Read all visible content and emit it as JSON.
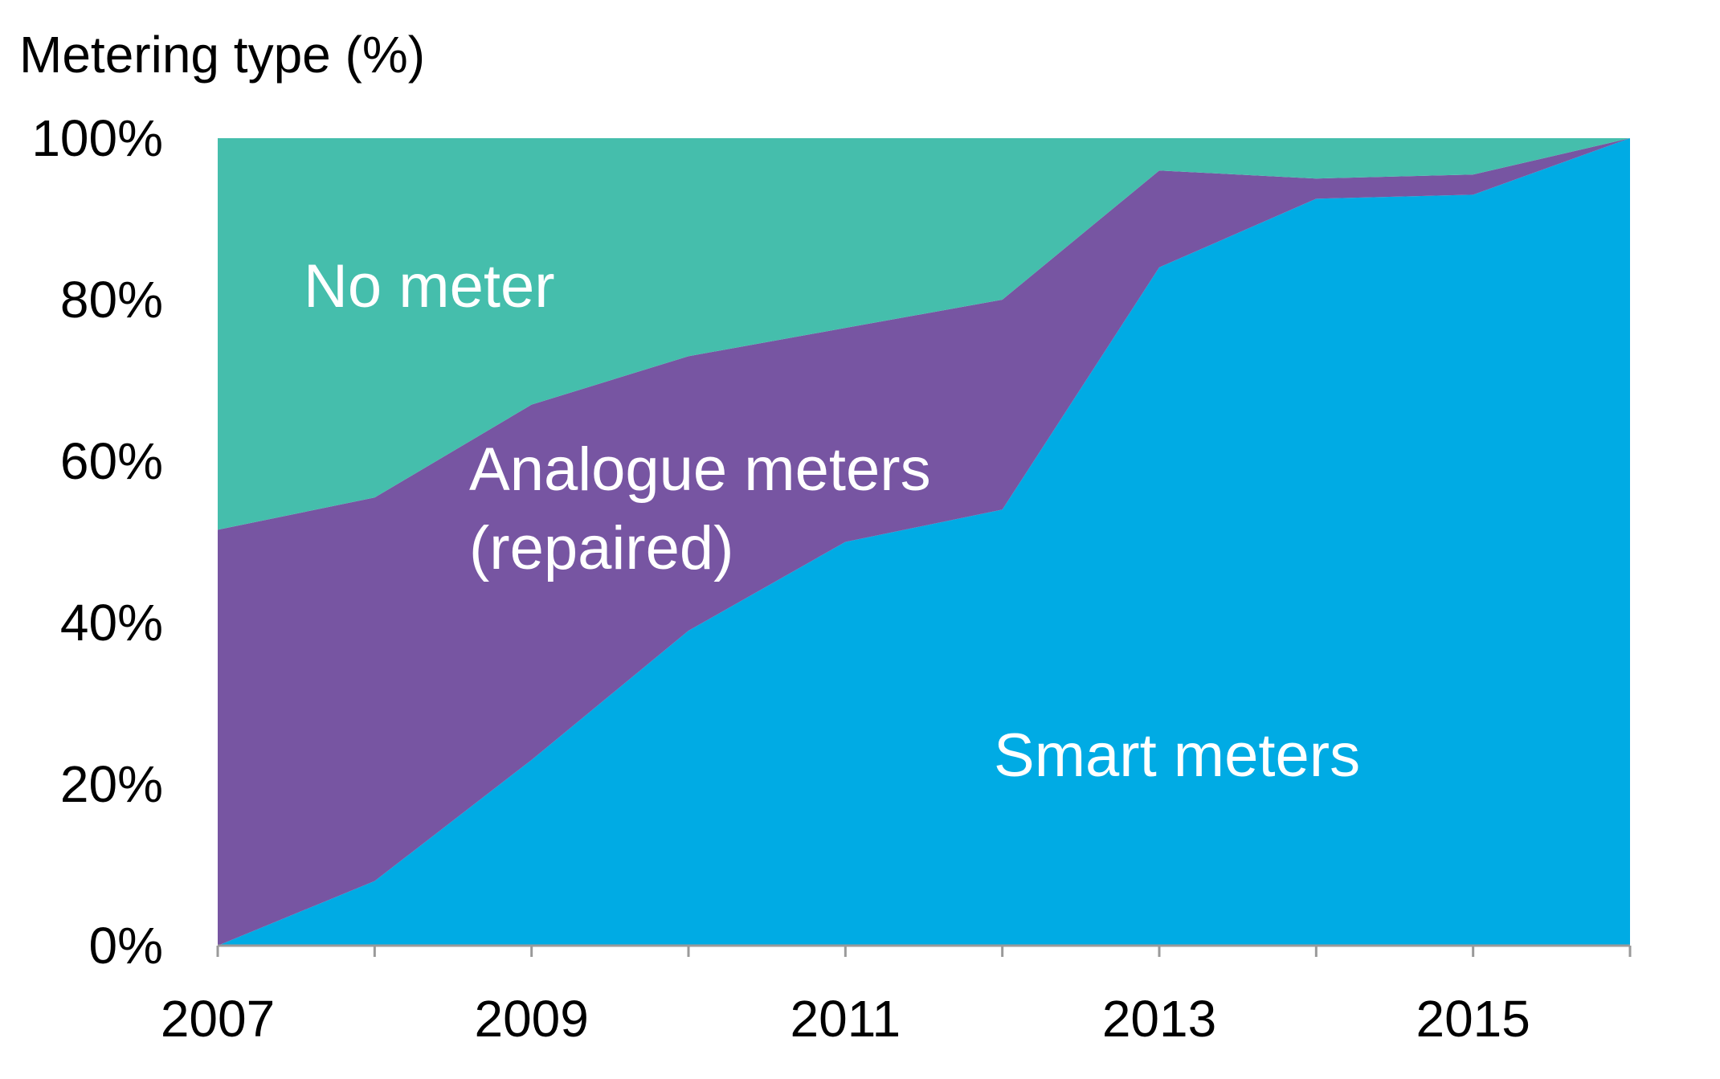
{
  "chart_data": {
    "type": "area",
    "stacked": true,
    "percent": true,
    "title": "",
    "ylabel": "Metering type (%)",
    "xlabel": "",
    "x": [
      2007,
      2008,
      2009,
      2010,
      2011,
      2012,
      2013,
      2014,
      2015,
      2016
    ],
    "xlim": [
      2007,
      2016
    ],
    "ylim": [
      0,
      100
    ],
    "x_ticks": [
      "2007",
      "2009",
      "2011",
      "2013",
      "2015"
    ],
    "y_ticks": [
      "0%",
      "20%",
      "40%",
      "60%",
      "80%",
      "100%"
    ],
    "grid": false,
    "legend": "none (series labelled inside areas)",
    "series": [
      {
        "name": "Smart meters",
        "color": "#00ABE4",
        "values": [
          0,
          8,
          23,
          39,
          50,
          54,
          84,
          92.5,
          93,
          100
        ]
      },
      {
        "name": "Analogue meters (repaired)",
        "color": "#7755A2",
        "values": [
          51.5,
          47.5,
          44,
          34,
          26.5,
          26,
          12,
          2.5,
          2.5,
          0
        ]
      },
      {
        "name": "No meter",
        "color": "#45BEAC",
        "values": [
          48.5,
          44.5,
          33,
          27,
          23.5,
          20,
          4,
          5,
          4.5,
          0
        ]
      }
    ],
    "annotations": [
      {
        "series": "No meter",
        "lines": [
          "No meter"
        ]
      },
      {
        "series": "Analogue meters (repaired)",
        "lines": [
          "Analogue meters",
          "(repaired)"
        ]
      },
      {
        "series": "Smart meters",
        "lines": [
          "Smart meters"
        ]
      }
    ]
  }
}
